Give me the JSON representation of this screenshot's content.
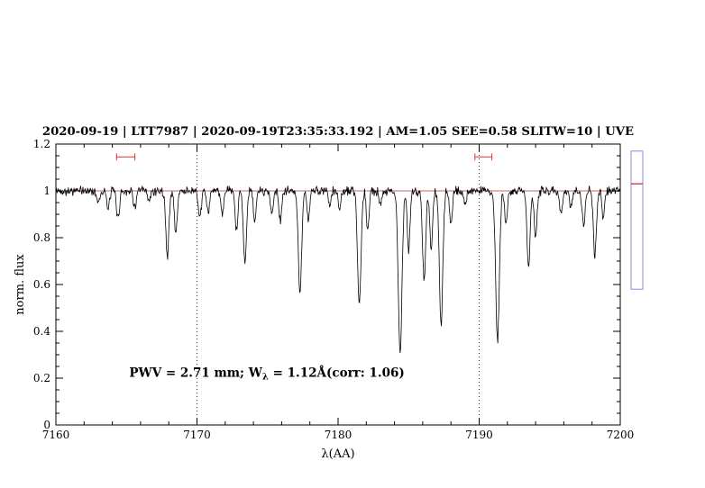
{
  "chart_data": {
    "type": "line",
    "title": "2020-09-19 | LTT7987 | 2020-09-19T23:35:33.192 | AM=1.05 SEE=0.58 SLITW=10 | UVE",
    "title_color": "#0000cc",
    "xlabel": "λ(AA)",
    "ylabel": "norm. flux",
    "xlim": [
      7160,
      7200
    ],
    "ylim": [
      0,
      1.2
    ],
    "x_major_ticks": [
      7160,
      7170,
      7180,
      7190,
      7200
    ],
    "x_tick_labels": [
      "7160",
      "7170",
      "7180",
      "7190",
      "7200"
    ],
    "x_minor_step": 2,
    "y_major_ticks": [
      0,
      0.2,
      0.4,
      0.6,
      0.8,
      1.0,
      1.2
    ],
    "y_tick_labels": [
      "0",
      "0.2",
      "0.4",
      "0.6",
      "0.8",
      "1",
      "1.2"
    ],
    "y_minor_step": 0.05,
    "grid": "off",
    "legend": "none",
    "dotted_guides_x": [
      7170,
      7190
    ],
    "continuum": {
      "level": 1.0,
      "color": "#d06060"
    },
    "spectrum": {
      "color": "#000000",
      "noise_sigma": 0.012,
      "sample_step": 0.04,
      "absorption_lines": [
        [
          7163.0,
          0.05,
          0.1
        ],
        [
          7163.7,
          0.08,
          0.1
        ],
        [
          7164.4,
          0.12,
          0.1
        ],
        [
          7165.6,
          0.07,
          0.1
        ],
        [
          7166.6,
          0.05,
          0.09
        ],
        [
          7167.9,
          0.28,
          0.11
        ],
        [
          7168.5,
          0.18,
          0.1
        ],
        [
          7170.2,
          0.13,
          0.1
        ],
        [
          7170.8,
          0.1,
          0.09
        ],
        [
          7171.8,
          0.1,
          0.09
        ],
        [
          7172.8,
          0.17,
          0.1
        ],
        [
          7173.4,
          0.3,
          0.11
        ],
        [
          7174.1,
          0.14,
          0.09
        ],
        [
          7175.3,
          0.1,
          0.09
        ],
        [
          7175.9,
          0.13,
          0.1
        ],
        [
          7177.3,
          0.44,
          0.12
        ],
        [
          7177.9,
          0.12,
          0.09
        ],
        [
          7179.4,
          0.07,
          0.09
        ],
        [
          7180.1,
          0.08,
          0.09
        ],
        [
          7181.5,
          0.5,
          0.12
        ],
        [
          7182.1,
          0.18,
          0.09
        ],
        [
          7183.0,
          0.06,
          0.09
        ],
        [
          7184.4,
          0.7,
          0.13
        ],
        [
          7185.0,
          0.25,
          0.1
        ],
        [
          7186.1,
          0.38,
          0.11
        ],
        [
          7186.6,
          0.25,
          0.1
        ],
        [
          7187.3,
          0.58,
          0.12
        ],
        [
          7188.0,
          0.15,
          0.09
        ],
        [
          7189.0,
          0.06,
          0.09
        ],
        [
          7191.3,
          0.64,
          0.13
        ],
        [
          7191.9,
          0.15,
          0.09
        ],
        [
          7193.5,
          0.33,
          0.11
        ],
        [
          7194.0,
          0.2,
          0.1
        ],
        [
          7195.8,
          0.1,
          0.09
        ],
        [
          7196.5,
          0.08,
          0.09
        ],
        [
          7197.4,
          0.15,
          0.1
        ],
        [
          7198.2,
          0.27,
          0.11
        ],
        [
          7198.8,
          0.12,
          0.09
        ]
      ]
    },
    "error_bars": {
      "color": "#dd3333",
      "y": 1.145,
      "items": [
        {
          "x1": 7164.3,
          "x2": 7165.6
        },
        {
          "x1": 7189.7,
          "x2": 7190.9
        }
      ]
    },
    "annotation": {
      "color": "#0000cc",
      "x": 7165.2,
      "y": 0.205,
      "prefix": "PWV = 2.71 mm; W",
      "sub": "λ",
      "suffix": " = 1.12Å(corr: 1.06)"
    },
    "side_marker": {
      "color": "#8888dd",
      "tick_color": "#dd4444",
      "top_flux": 1.17,
      "bottom_flux": 0.58,
      "tick_flux": 1.03
    }
  }
}
